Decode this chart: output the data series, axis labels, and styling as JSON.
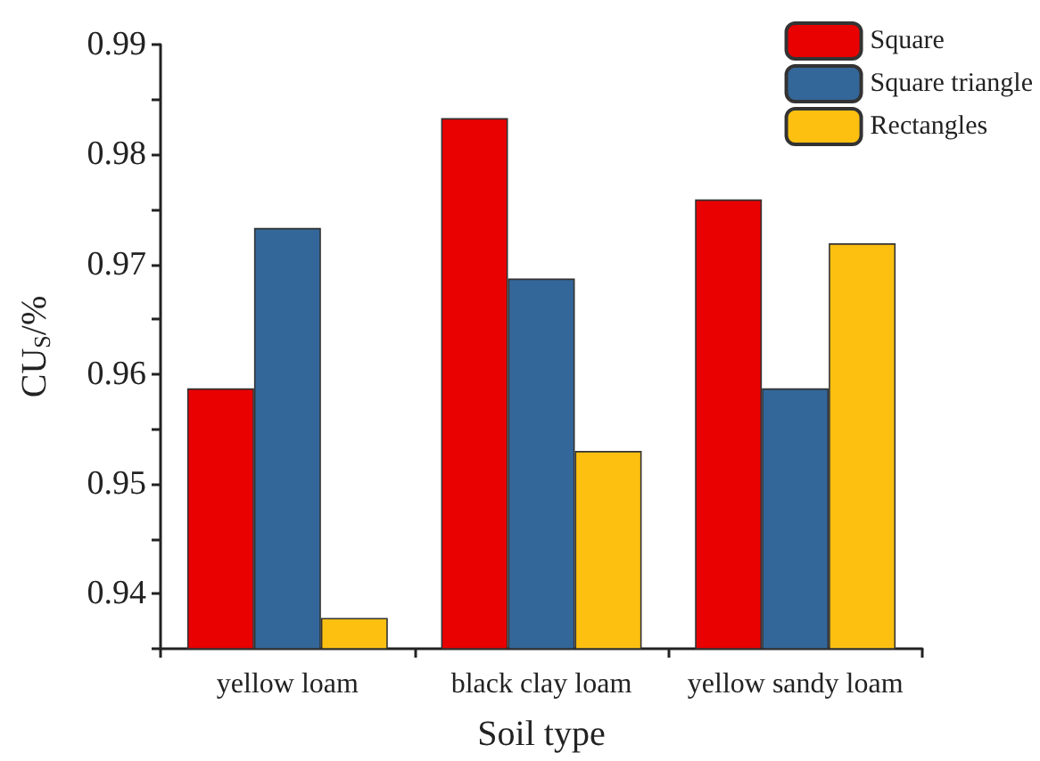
{
  "chart_data": {
    "type": "bar",
    "xlabel": "Soil type",
    "ylabel": "CU$_{S}$/%",
    "categories": [
      "yellow loam",
      "black clay loam",
      "yellow sandy loam"
    ],
    "series": [
      {
        "name": "Square",
        "color": "#e90000",
        "values": [
          0.9587,
          0.9833,
          0.9759
        ]
      },
      {
        "name": "Square triangle",
        "color": "#336699",
        "values": [
          0.9733,
          0.9687,
          0.9587
        ]
      },
      {
        "name": "Rectangles",
        "color": "#fdc010",
        "values": [
          0.9378,
          0.953,
          0.9719
        ]
      }
    ],
    "ylim": [
      0.935,
      0.99
    ],
    "yticks": [
      {
        "value": 0.935,
        "label": null
      },
      0.94,
      {
        "value": 0.945,
        "label": null
      },
      0.95,
      {
        "value": 0.955,
        "label": null
      },
      0.96,
      {
        "value": 0.965,
        "label": null
      },
      0.97,
      {
        "value": 0.975,
        "label": null
      },
      0.98,
      {
        "value": 0.985,
        "label": null
      },
      0.99
    ],
    "grid": false,
    "legend": "top right"
  }
}
